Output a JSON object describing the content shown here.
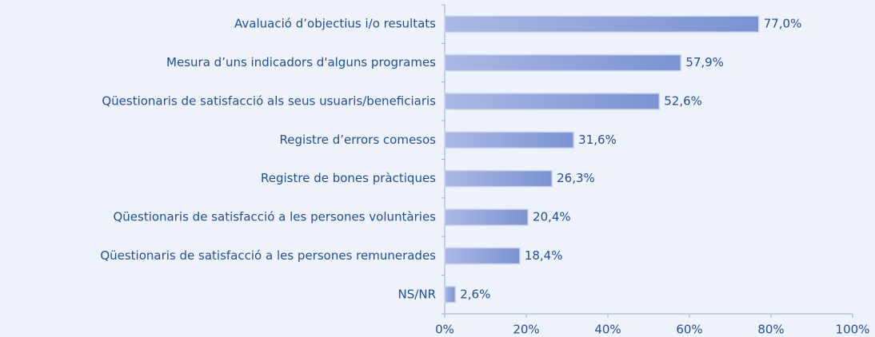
{
  "chart_data": {
    "type": "bar",
    "orientation": "horizontal",
    "categories": [
      "Avaluació d’objectius i/o resultats",
      "Mesura d’uns indicadors d'alguns programes",
      "Qüestionaris de satisfacció als seus usuaris/beneficiaris",
      "Registre d’errors comesos",
      "Registre de bones pràctiques",
      "Qüestionaris de satisfacció a les persones voluntàries",
      "Qüestionaris de satisfacció a les persones remunerades",
      "NS/NR"
    ],
    "values": [
      77.0,
      57.9,
      52.6,
      31.6,
      26.3,
      20.4,
      18.4,
      2.6
    ],
    "value_labels": [
      "77,0%",
      "57,9%",
      "52,6%",
      "31,6%",
      "26,3%",
      "20,4%",
      "18,4%",
      "2,6%"
    ],
    "color": "#8a9fd8",
    "xlim": [
      0,
      100
    ],
    "xticks": [
      {
        "value": 0,
        "label": "0%"
      },
      {
        "value": 20,
        "label": "20%"
      },
      {
        "value": 40,
        "label": "40%"
      },
      {
        "value": 60,
        "label": "60%"
      },
      {
        "value": 80,
        "label": "80%"
      },
      {
        "value": 100,
        "label": "100%"
      }
    ]
  }
}
